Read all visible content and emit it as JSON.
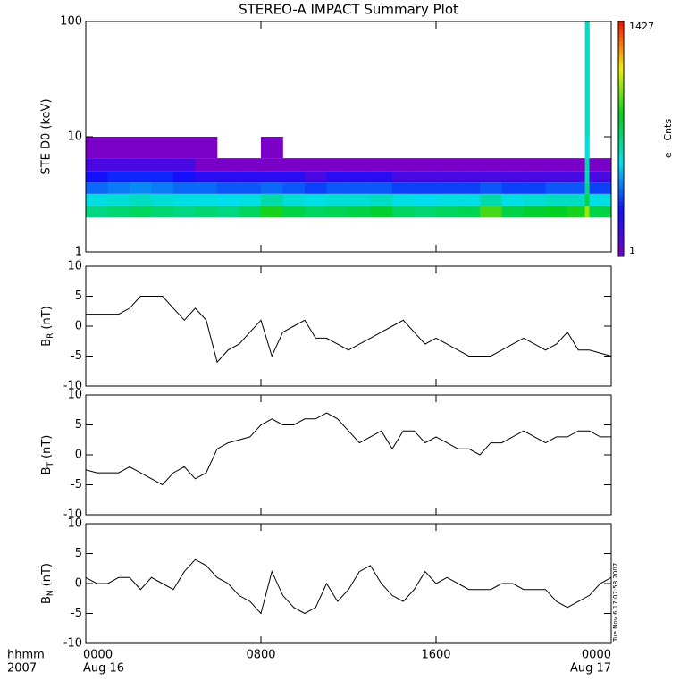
{
  "title": "STEREO-A IMPACT Summary Plot",
  "timestamp": "Tue Nov  6 17:07:58 2007",
  "chart_data": [
    {
      "type": "heatmap",
      "ylabel": "STE D0 (keV)",
      "log_y": true,
      "xlim": [
        0,
        24
      ],
      "xticks": [
        0,
        8,
        16,
        24
      ],
      "ylim": [
        1,
        100
      ],
      "yticks": [
        1,
        10,
        100
      ],
      "x_edges": [
        0,
        1,
        2,
        3,
        4,
        5,
        6,
        7,
        8,
        9,
        10,
        11,
        12,
        13,
        14,
        15,
        16,
        17,
        18,
        19,
        20,
        21,
        22,
        22.8,
        23.0,
        24
      ],
      "y_edges": [
        2,
        2.5,
        3.2,
        4,
        5,
        6.5,
        10,
        100
      ],
      "z": [
        [
          40,
          45,
          50,
          45,
          40,
          45,
          40,
          50,
          90,
          60,
          50,
          55,
          60,
          70,
          50,
          45,
          50,
          55,
          120,
          60,
          70,
          80,
          90,
          200,
          60
        ],
        [
          20,
          22,
          25,
          22,
          20,
          20,
          18,
          20,
          30,
          22,
          20,
          22,
          22,
          25,
          20,
          18,
          20,
          20,
          30,
          20,
          22,
          25,
          25,
          60,
          20
        ],
        [
          8,
          9,
          10,
          9,
          8,
          8,
          7,
          7,
          8,
          7,
          6,
          7,
          7,
          7,
          6,
          6,
          6,
          6,
          7,
          6,
          6,
          7,
          7,
          40,
          6
        ],
        [
          4,
          5,
          5,
          5,
          4,
          3,
          3,
          3,
          3,
          3,
          2,
          3,
          3,
          3,
          2,
          2,
          2,
          2,
          2,
          2,
          2,
          2,
          2,
          30,
          2
        ],
        [
          2,
          2,
          2,
          2,
          2,
          1,
          1,
          1,
          1,
          1,
          1,
          1,
          1,
          1,
          1,
          1,
          1,
          1,
          1,
          1,
          1,
          1,
          1,
          30,
          1
        ],
        [
          1,
          1,
          1,
          1,
          1,
          1,
          null,
          null,
          1,
          null,
          null,
          null,
          null,
          null,
          null,
          null,
          null,
          null,
          null,
          null,
          null,
          null,
          null,
          20,
          null
        ],
        [
          null,
          null,
          null,
          null,
          null,
          null,
          null,
          null,
          null,
          null,
          null,
          null,
          null,
          null,
          null,
          null,
          null,
          null,
          null,
          null,
          null,
          null,
          null,
          25,
          null
        ]
      ],
      "colorbar": {
        "clim": [
          1,
          1427
        ],
        "ticks": [
          1,
          1427
        ],
        "label": "e− Cnts",
        "colormap": [
          "#7a00c8",
          "#1010ff",
          "#00e0f0",
          "#00d020",
          "#f0f000",
          "#ff1000"
        ]
      }
    },
    {
      "type": "line",
      "ylabel": "B",
      "ylabel_sub": "R",
      "ylabel_unit": "(nT)",
      "xlim": [
        0,
        24
      ],
      "xticks": [
        0,
        8,
        16,
        24
      ],
      "ylim": [
        -10,
        10
      ],
      "yticks": [
        -10,
        -5,
        0,
        5,
        10
      ],
      "x": [
        0,
        0.5,
        1,
        1.5,
        2,
        2.5,
        3,
        3.5,
        4,
        4.5,
        5,
        5.5,
        6,
        6.5,
        7,
        7.5,
        8,
        8.5,
        9,
        9.5,
        10,
        10.5,
        11,
        11.5,
        12,
        12.5,
        13,
        13.5,
        14,
        14.5,
        15,
        15.5,
        16,
        16.5,
        17,
        17.5,
        18,
        18.5,
        19,
        19.5,
        20,
        20.5,
        21,
        21.5,
        22,
        22.5,
        23,
        23.5,
        24
      ],
      "series": [
        {
          "color": "#000000",
          "values": [
            2,
            2,
            2,
            2,
            3,
            5,
            5,
            5,
            3,
            1,
            3,
            1,
            -6,
            -4,
            -3,
            -1,
            1,
            -5,
            -1,
            0,
            1,
            -2,
            -2,
            -3,
            -4,
            -3,
            -2,
            -1,
            0,
            1,
            -1,
            -3,
            -2,
            -3,
            -4,
            -5,
            -5,
            -5,
            -4,
            -3,
            -2,
            -3,
            -4,
            -3,
            -1,
            -4,
            -4,
            -4.5,
            -5
          ]
        }
      ]
    },
    {
      "type": "line",
      "ylabel": "B",
      "ylabel_sub": "T",
      "ylabel_unit": "(nT)",
      "xlim": [
        0,
        24
      ],
      "xticks": [
        0,
        8,
        16,
        24
      ],
      "ylim": [
        -10,
        10
      ],
      "yticks": [
        -10,
        -5,
        0,
        5,
        10
      ],
      "x": [
        0,
        0.5,
        1,
        1.5,
        2,
        2.5,
        3,
        3.5,
        4,
        4.5,
        5,
        5.5,
        6,
        6.5,
        7,
        7.5,
        8,
        8.5,
        9,
        9.5,
        10,
        10.5,
        11,
        11.5,
        12,
        12.5,
        13,
        13.5,
        14,
        14.5,
        15,
        15.5,
        16,
        16.5,
        17,
        17.5,
        18,
        18.5,
        19,
        19.5,
        20,
        20.5,
        21,
        21.5,
        22,
        22.5,
        23,
        23.5,
        24
      ],
      "series": [
        {
          "color": "#000000",
          "values": [
            -2.5,
            -3,
            -3,
            -3,
            -2,
            -3,
            -4,
            -5,
            -3,
            -2,
            -4,
            -3,
            1,
            2,
            2.5,
            3,
            5,
            6,
            5,
            5,
            6,
            6,
            7,
            6,
            4,
            2,
            3,
            4,
            1,
            4,
            4,
            2,
            3,
            2,
            1,
            1,
            0,
            2,
            2,
            3,
            4,
            3,
            2,
            3,
            3,
            4,
            4,
            3,
            3
          ]
        }
      ]
    },
    {
      "type": "line",
      "ylabel": "B",
      "ylabel_sub": "N",
      "ylabel_unit": "(nT)",
      "xlim": [
        0,
        24
      ],
      "xticks": [
        {
          "value": 0,
          "label": "0000"
        },
        {
          "value": 8,
          "label": "0800"
        },
        {
          "value": 16,
          "label": "1600"
        },
        {
          "value": 24,
          "label": "0000"
        }
      ],
      "date_labels": [
        {
          "value": 0,
          "label": "Aug 16"
        },
        {
          "value": 24,
          "label": "Aug 17"
        }
      ],
      "x_axis_label": [
        "hhmm",
        "2007"
      ],
      "ylim": [
        -10,
        10
      ],
      "yticks": [
        -10,
        -5,
        0,
        5,
        10
      ],
      "x": [
        0,
        0.5,
        1,
        1.5,
        2,
        2.5,
        3,
        3.5,
        4,
        4.5,
        5,
        5.5,
        6,
        6.5,
        7,
        7.5,
        8,
        8.5,
        9,
        9.5,
        10,
        10.5,
        11,
        11.5,
        12,
        12.5,
        13,
        13.5,
        14,
        14.5,
        15,
        15.5,
        16,
        16.5,
        17,
        17.5,
        18,
        18.5,
        19,
        19.5,
        20,
        20.5,
        21,
        21.5,
        22,
        22.5,
        23,
        23.5,
        24
      ],
      "series": [
        {
          "color": "#000000",
          "values": [
            1,
            0,
            0,
            1,
            1,
            -1,
            1,
            0,
            -1,
            2,
            4,
            3,
            1,
            0,
            -2,
            -3,
            -5,
            2,
            -2,
            -4,
            -5,
            -4,
            0,
            -3,
            -1,
            2,
            3,
            0,
            -2,
            -3,
            -1,
            2,
            0,
            1,
            0,
            -1,
            -1,
            -1,
            0,
            0,
            -1,
            -1,
            -1,
            -3,
            -4,
            -3,
            -2,
            0,
            1
          ]
        }
      ]
    }
  ]
}
